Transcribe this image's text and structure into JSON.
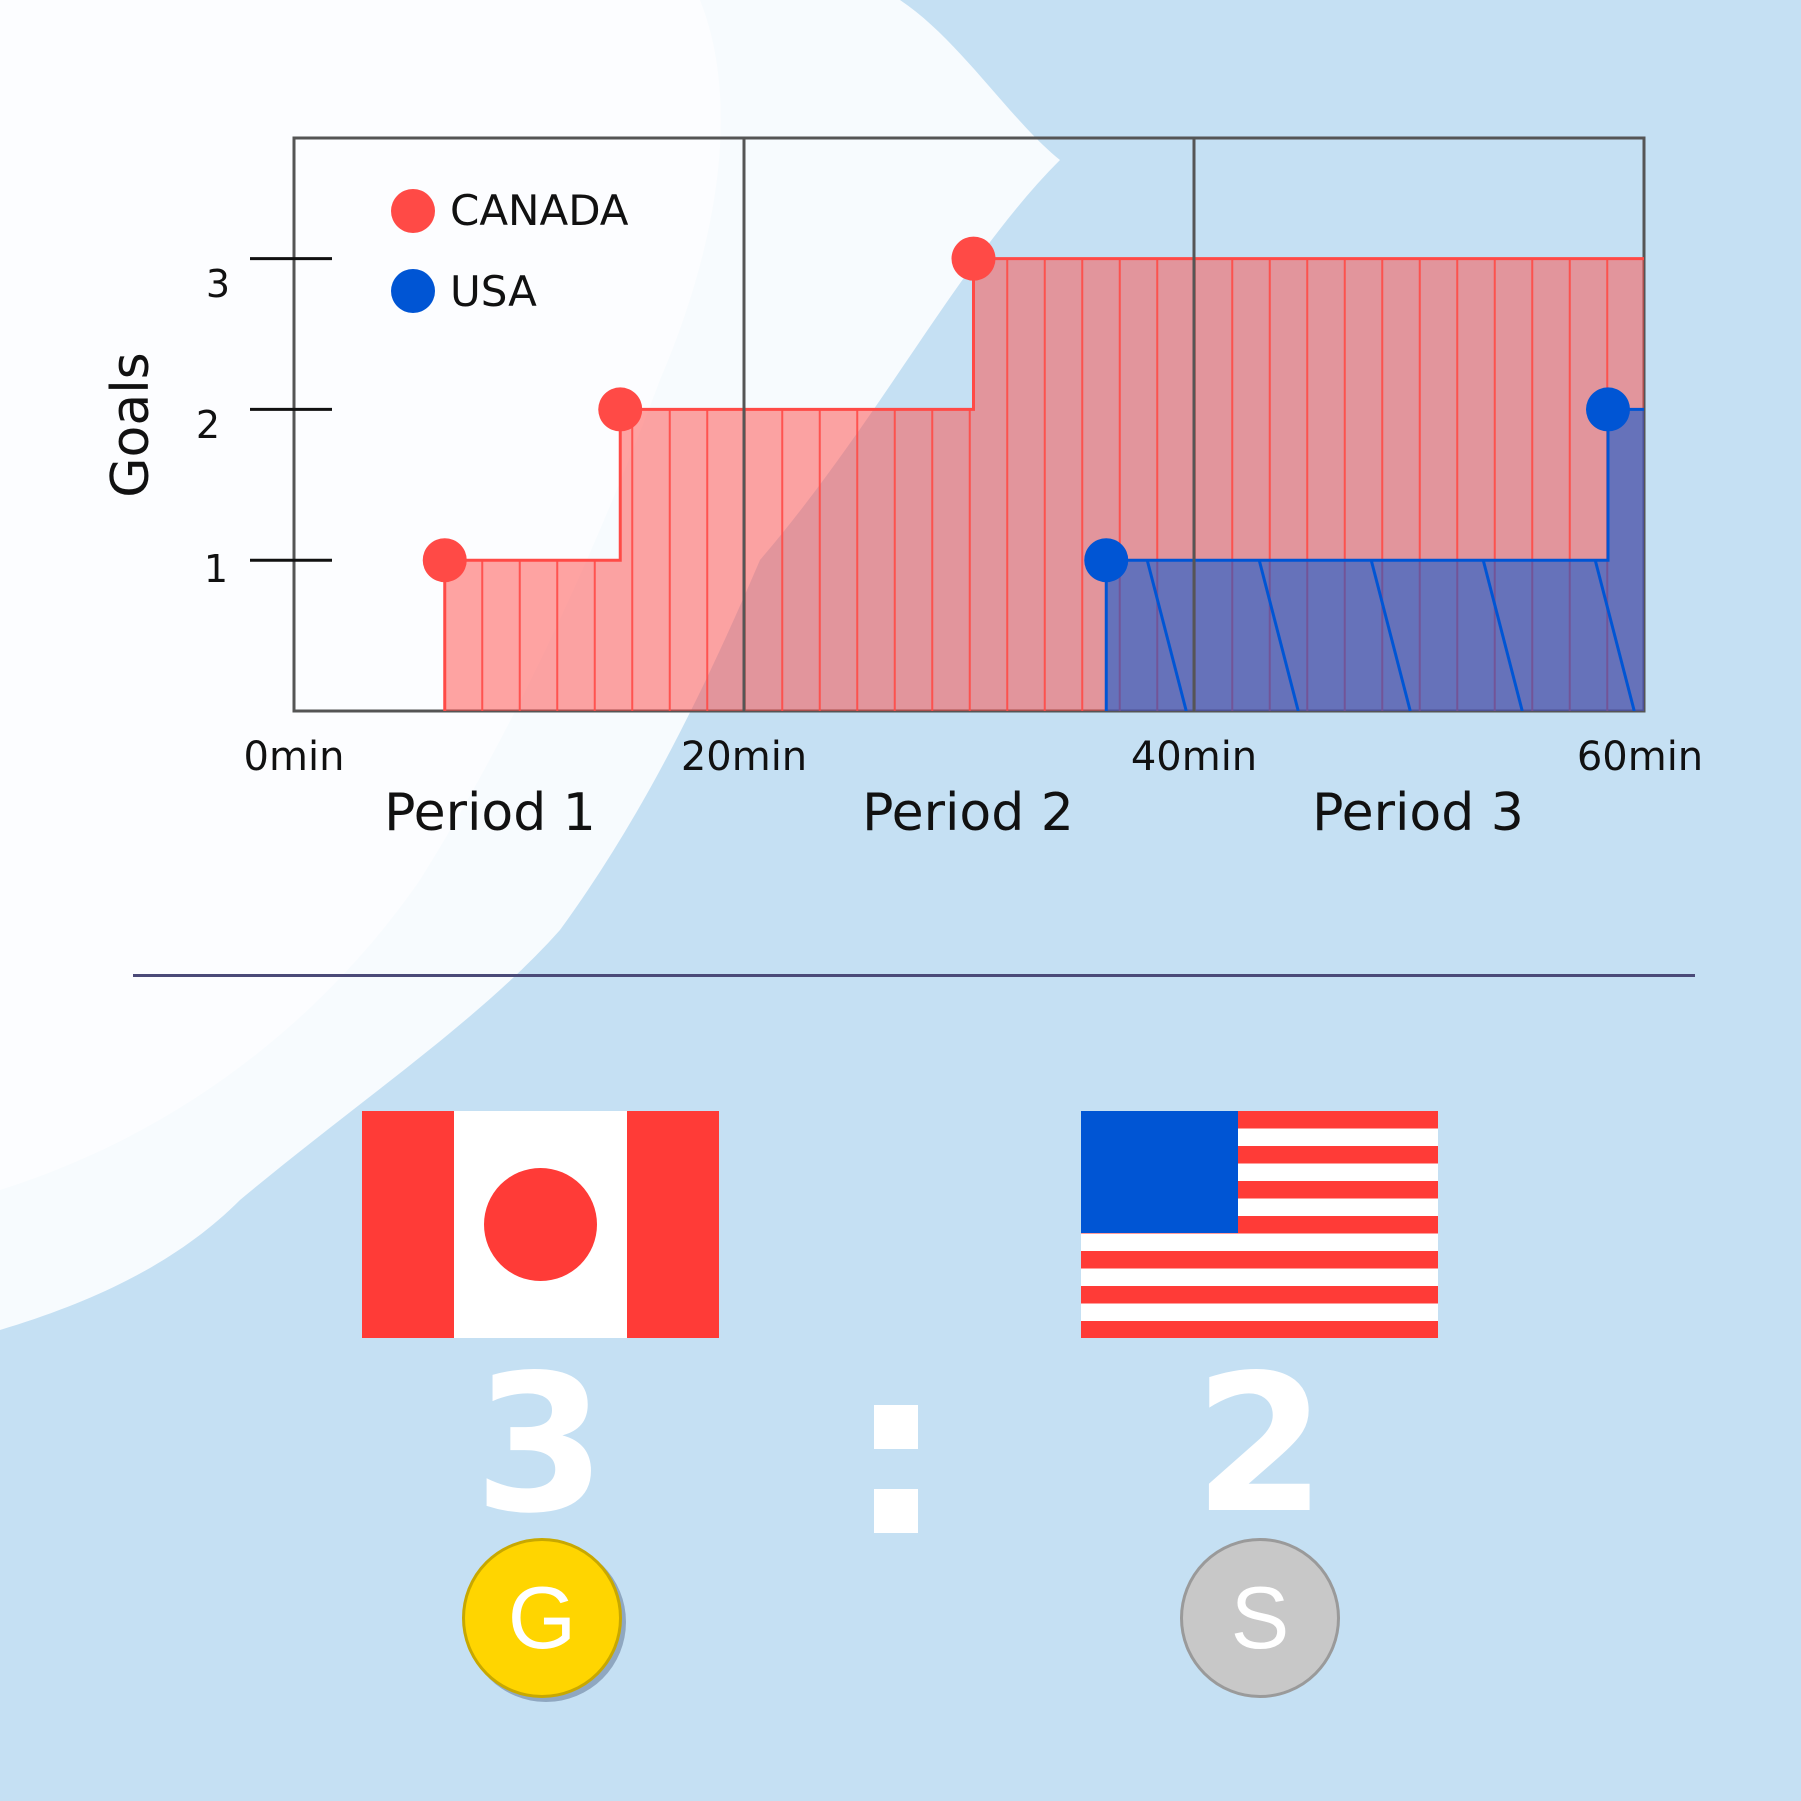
{
  "colors": {
    "canada": "#ff4a46",
    "usa": "#0055d4",
    "background": "#c5e0f3",
    "gold": "#ffd500",
    "silver": "#c8c8c8"
  },
  "chart_data": {
    "type": "area",
    "ylabel": "Goals",
    "xlabel": "",
    "xlim": [
      0,
      60
    ],
    "ylim": [
      0,
      3.8
    ],
    "x_ticks": [
      "0min",
      "20min",
      "40min",
      "60min"
    ],
    "y_ticks": [
      "1",
      "2",
      "3"
    ],
    "periods": [
      "Period 1",
      "Period 2",
      "Period 3"
    ],
    "legend_placement": "top-left",
    "series": [
      {
        "name": "CANADA",
        "goal_times": [
          6.7,
          14.5,
          30.2
        ],
        "final": 3
      },
      {
        "name": "USA",
        "goal_times": [
          36.1,
          58.4
        ],
        "final": 2
      }
    ]
  },
  "scoreboard": {
    "canada_score": "3",
    "usa_score": "2",
    "canada_medal": "G",
    "usa_medal": "S"
  },
  "icons": {
    "canada_flag": "canada-flag-icon",
    "usa_flag": "usa-flag-icon"
  }
}
